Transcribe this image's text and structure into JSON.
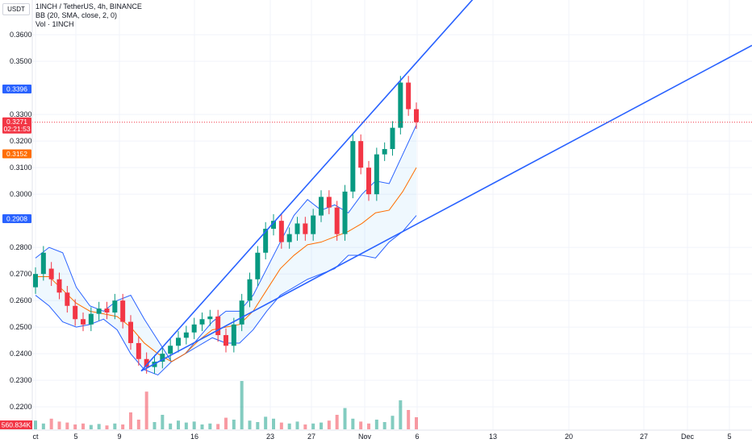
{
  "header": {
    "symbol_title": "1INCH / TetherUS, 4h, BINANCE",
    "indicator_bb": "BB (20, SMA, close, 2, 0)",
    "indicator_vol": "Vol · 1INCH",
    "currency_button": "USDT"
  },
  "chart_data": {
    "type": "candlestick",
    "title": "1INCH / TetherUS, 4h, BINANCE",
    "ylim": [
      0.2155,
      0.3655
    ],
    "y_ticks": [
      "0.3600",
      "0.3500",
      "0.3300",
      "0.3200",
      "0.3100",
      "0.3000",
      "0.2800",
      "0.2700",
      "0.2600",
      "0.2500",
      "0.2400",
      "0.2300",
      "0.2200"
    ],
    "x_ticks": [
      "ct",
      "5",
      "9",
      "16",
      "23",
      "27",
      "Nov",
      "6",
      "13",
      "20",
      "27",
      "Dec",
      "5"
    ],
    "price_tags": [
      {
        "label": "0.3396",
        "value": 0.3396,
        "color": "#2962ff"
      },
      {
        "label": "0.3271",
        "sublabel": "02:21:53",
        "value": 0.3271,
        "color": "#f23645"
      },
      {
        "label": "0.3152",
        "value": 0.3152,
        "color": "#ff6d00"
      },
      {
        "label": "0.2908",
        "value": 0.2908,
        "color": "#2962ff"
      }
    ],
    "volume_tag": "560.834K",
    "current_price": 0.3271,
    "trendlines": [
      {
        "name": "upper-channel",
        "color": "#2962ff",
        "from": [
          0.2335,
          "Oct 12"
        ],
        "to": [
          0.374,
          "Nov 7"
        ]
      },
      {
        "name": "lower-channel",
        "color": "#2962ff",
        "from": [
          0.2335,
          "Oct 12"
        ],
        "to": [
          0.356,
          "Dec 6"
        ]
      }
    ],
    "series": [
      {
        "name": "price",
        "points": [
          [
            0.265,
            0.27
          ],
          [
            0.27,
            0.278
          ],
          [
            0.272,
            0.268
          ],
          [
            0.268,
            0.263
          ],
          [
            0.263,
            0.258
          ],
          [
            0.258,
            0.253
          ],
          [
            0.253,
            0.251
          ],
          [
            0.251,
            0.255
          ],
          [
            0.255,
            0.257
          ],
          [
            0.257,
            0.2555
          ],
          [
            0.2555,
            0.26
          ],
          [
            0.26,
            0.252
          ],
          [
            0.252,
            0.244
          ],
          [
            0.244,
            0.238
          ],
          [
            0.238,
            0.235
          ],
          [
            0.235,
            0.237
          ],
          [
            0.237,
            0.24
          ],
          [
            0.24,
            0.243
          ],
          [
            0.243,
            0.246
          ],
          [
            0.246,
            0.248
          ],
          [
            0.248,
            0.251
          ],
          [
            0.251,
            0.253
          ],
          [
            0.253,
            0.254
          ],
          [
            0.254,
            0.247
          ],
          [
            0.247,
            0.243
          ],
          [
            0.243,
            0.251
          ],
          [
            0.251,
            0.26
          ],
          [
            0.26,
            0.268
          ],
          [
            0.268,
            0.278
          ],
          [
            0.278,
            0.287
          ],
          [
            0.287,
            0.29
          ],
          [
            0.29,
            0.282
          ],
          [
            0.282,
            0.285
          ],
          [
            0.285,
            0.289
          ],
          [
            0.289,
            0.285
          ],
          [
            0.285,
            0.292
          ],
          [
            0.292,
            0.299
          ],
          [
            0.299,
            0.295
          ],
          [
            0.295,
            0.285
          ],
          [
            0.285,
            0.301
          ],
          [
            0.301,
            0.32
          ],
          [
            0.32,
            0.31
          ],
          [
            0.31,
            0.3
          ],
          [
            0.3,
            0.315
          ],
          [
            0.315,
            0.317
          ],
          [
            0.317,
            0.325
          ],
          [
            0.325,
            0.342
          ],
          [
            0.342,
            0.332
          ],
          [
            0.332,
            0.3271
          ]
        ]
      },
      {
        "name": "bb_upper",
        "values": [
          0.276,
          0.28,
          0.278,
          0.265,
          0.258,
          0.256,
          0.26,
          0.262,
          0.253,
          0.245,
          0.237,
          0.24,
          0.246,
          0.252,
          0.256,
          0.256,
          0.262,
          0.272,
          0.282,
          0.292,
          0.298,
          0.294,
          0.296,
          0.293,
          0.3,
          0.305,
          0.304,
          0.315,
          0.326
        ]
      },
      {
        "name": "bb_basis",
        "values": [
          0.269,
          0.269,
          0.264,
          0.259,
          0.256,
          0.255,
          0.254,
          0.25,
          0.244,
          0.24,
          0.237,
          0.24,
          0.245,
          0.249,
          0.25,
          0.251,
          0.256,
          0.264,
          0.272,
          0.277,
          0.281,
          0.282,
          0.284,
          0.286,
          0.289,
          0.293,
          0.294,
          0.301,
          0.31
        ]
      },
      {
        "name": "bb_lower",
        "values": [
          0.262,
          0.258,
          0.252,
          0.25,
          0.251,
          0.253,
          0.249,
          0.24,
          0.234,
          0.232,
          0.237,
          0.24,
          0.243,
          0.246,
          0.244,
          0.244,
          0.249,
          0.256,
          0.262,
          0.265,
          0.268,
          0.27,
          0.272,
          0.277,
          0.277,
          0.276,
          0.282,
          0.286,
          0.292
        ]
      }
    ],
    "volume": [
      0.18,
      0.12,
      0.22,
      0.16,
      0.14,
      0.1,
      0.12,
      0.09,
      0.11,
      0.08,
      0.12,
      0.1,
      0.35,
      0.2,
      0.78,
      0.15,
      0.3,
      0.12,
      0.18,
      0.14,
      0.16,
      0.1,
      0.12,
      0.11,
      0.24,
      0.2,
      1.0,
      0.18,
      0.15,
      0.26,
      0.22,
      0.14,
      0.12,
      0.16,
      0.1,
      0.12,
      0.14,
      0.18,
      0.3,
      0.44,
      0.22,
      0.16,
      0.12,
      0.2,
      0.15,
      0.28,
      0.6,
      0.4,
      0.25
    ]
  }
}
